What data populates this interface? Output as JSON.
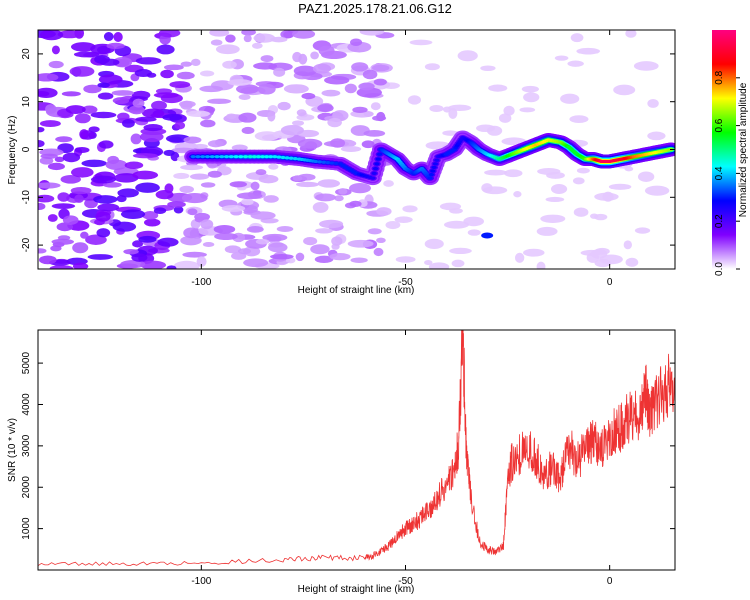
{
  "title": "PAZ1.2025.178.21.06.G12",
  "chart_data": [
    {
      "type": "heatmap",
      "xlabel": "Height of straight line (km)",
      "ylabel": "Frequency (Hz)",
      "xlim": [
        -140,
        16
      ],
      "ylim": [
        -25,
        25
      ],
      "x_ticks": [
        -100,
        -50,
        0
      ],
      "y_ticks": [
        -20,
        -10,
        0,
        10,
        20
      ],
      "colorbar": {
        "label": "Normalized spectral amplitude",
        "range": [
          0,
          1
        ],
        "ticks": [
          0.0,
          0.2,
          0.4,
          0.6,
          0.8
        ],
        "tick_labels": [
          "0.0",
          "0.2",
          "0.4",
          "0.6",
          "0.8"
        ],
        "colors": [
          "#ffffff",
          "#8000ff",
          "#0000ff",
          "#00ffff",
          "#00ff00",
          "#ffff00",
          "#ff0000",
          "#ff0080"
        ]
      },
      "ridge": {
        "x": [
          -102,
          -95,
          -88,
          -82,
          -76,
          -72,
          -66,
          -62,
          -58,
          -56,
          -54,
          -52,
          -50,
          -48,
          -46,
          -44,
          -42,
          -40,
          -38,
          -36,
          -34,
          -32,
          -30,
          -27,
          -24,
          -21,
          -18,
          -15,
          -12,
          -10,
          -8,
          -6,
          -4,
          -2,
          0,
          3,
          6,
          9,
          12,
          15
        ],
        "freq": [
          -1.5,
          -1.5,
          -1.5,
          -1.5,
          -2,
          -2.5,
          -3,
          -5,
          -6,
          0,
          -1,
          -2,
          -4,
          -5,
          -4,
          -6,
          -1.5,
          -1,
          0,
          2.5,
          1.5,
          0,
          -1,
          -2,
          -1,
          0,
          1,
          2,
          1.5,
          0.5,
          -1,
          -2,
          -2,
          -2.5,
          -2.5,
          -2,
          -1.5,
          -1,
          -0.5,
          0
        ],
        "amplitude": [
          0.35,
          0.4,
          0.45,
          0.42,
          0.4,
          0.35,
          0.3,
          0.3,
          0.25,
          0.3,
          0.35,
          0.4,
          0.35,
          0.3,
          0.35,
          0.3,
          0.25,
          0.3,
          0.3,
          0.25,
          0.3,
          0.35,
          0.4,
          0.5,
          0.6,
          0.7,
          0.75,
          0.7,
          0.65,
          0.55,
          0.55,
          0.6,
          0.8,
          0.95,
          0.95,
          0.9,
          0.8,
          0.75,
          0.7,
          0.65
        ]
      },
      "blobs": [
        {
          "x": -30,
          "freq": -18,
          "amplitude": 0.3
        }
      ]
    },
    {
      "type": "line",
      "xlabel": "Height of straight line (km)",
      "ylabel": "SNR (10 * v/v)",
      "xlim": [
        -140,
        16
      ],
      "ylim": [
        0,
        5800
      ],
      "x_ticks": [
        -100,
        -50,
        0
      ],
      "y_ticks": [
        1000,
        2000,
        3000,
        4000,
        5000
      ],
      "color": "#ee3333",
      "series": [
        {
          "x": [
            -140,
            -120,
            -100,
            -80,
            -70,
            -60,
            -58,
            -56,
            -54,
            -52,
            -50,
            -48,
            -46,
            -44,
            -42,
            -40,
            -38,
            -37,
            -36,
            -35,
            -34,
            -32,
            -30,
            -28,
            -26,
            -25,
            -24,
            -22,
            -20,
            -18,
            -16,
            -14,
            -12,
            -10,
            -8,
            -6,
            -4,
            -2,
            0,
            2,
            4,
            6,
            8,
            9,
            10,
            12,
            14,
            16
          ],
          "values": [
            150,
            150,
            170,
            250,
            300,
            300,
            350,
            450,
            600,
            800,
            1000,
            1100,
            1300,
            1500,
            1800,
            2000,
            2500,
            3000,
            5800,
            2600,
            1800,
            700,
            500,
            450,
            600,
            2200,
            2600,
            2800,
            2900,
            2700,
            2300,
            2500,
            2200,
            3000,
            2600,
            2900,
            3100,
            3000,
            3300,
            3400,
            3600,
            3700,
            3900,
            4300,
            3800,
            4100,
            4400,
            4600
          ]
        }
      ]
    }
  ]
}
